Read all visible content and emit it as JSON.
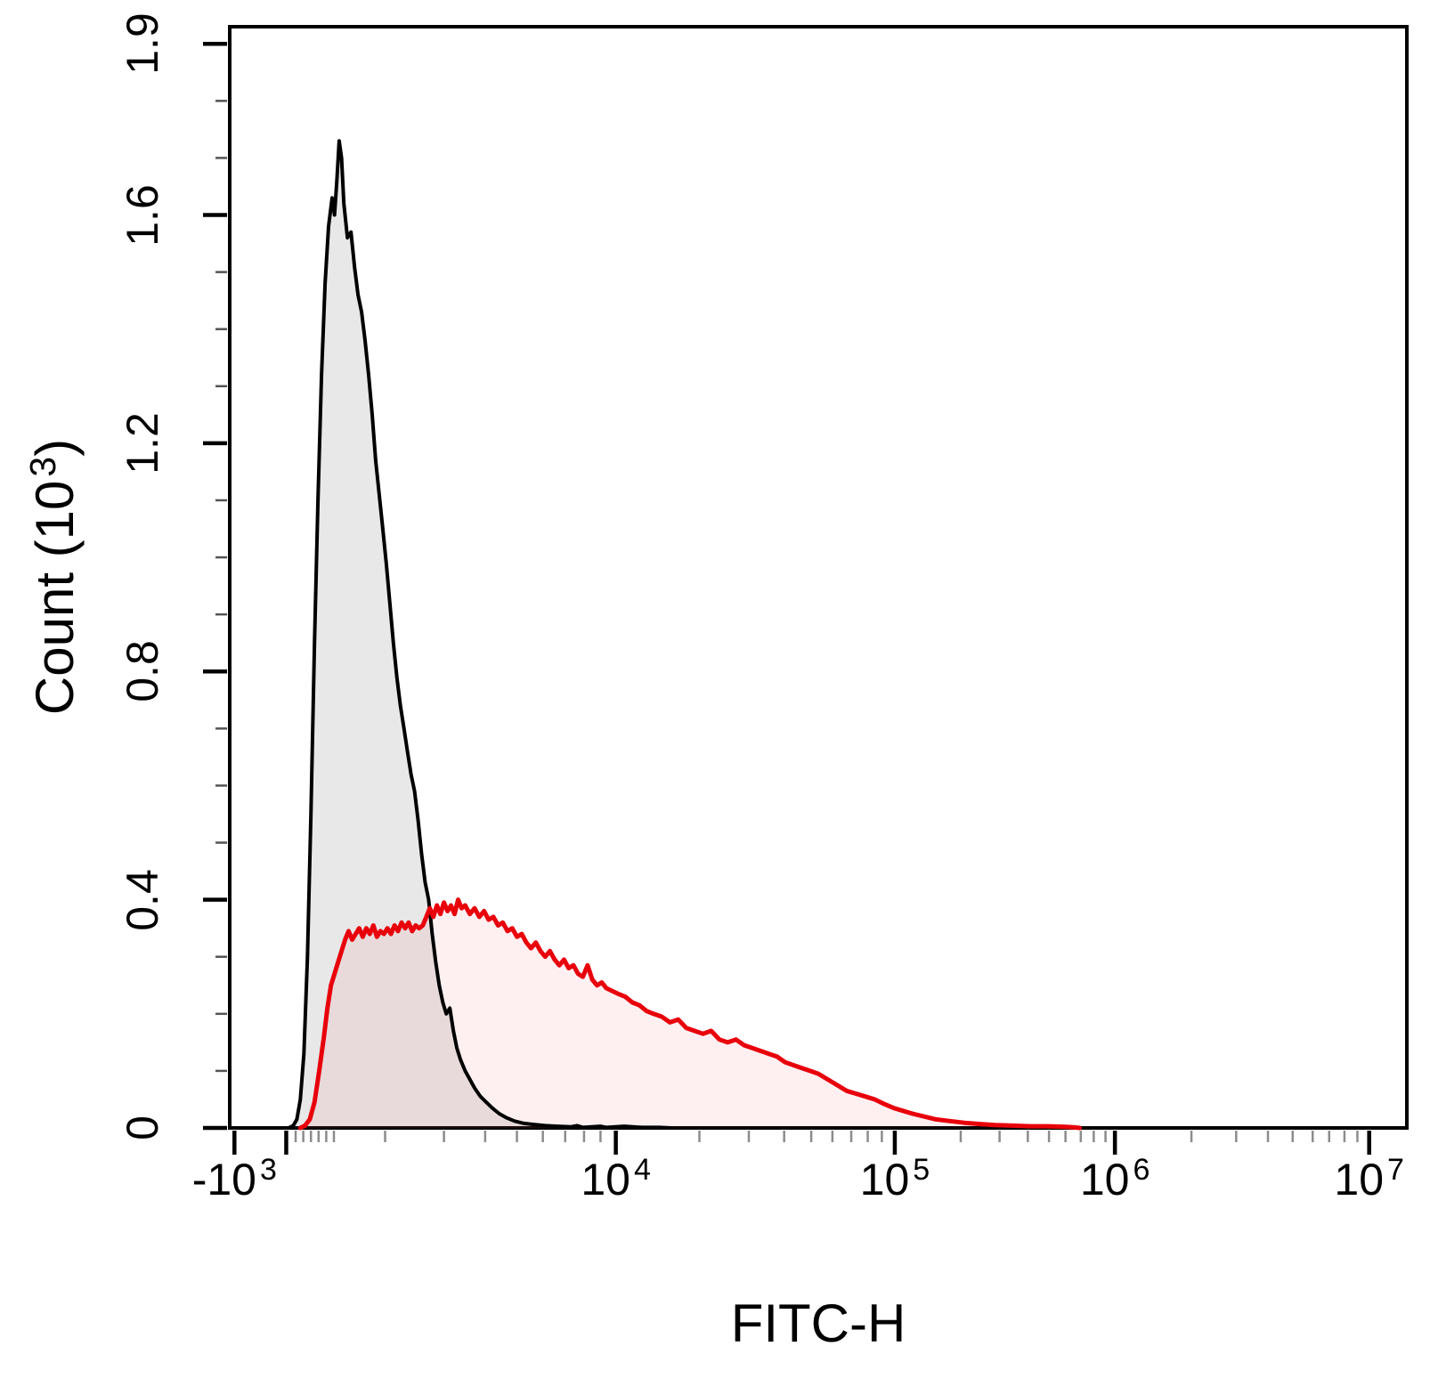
{
  "chart_data": {
    "type": "area",
    "subtype": "flow-cytometry-histogram-overlay",
    "title": "",
    "x_title": "FITC-H",
    "y_title": {
      "pre": "Count (10",
      "exp": "3",
      "post": ")"
    },
    "x_scale": "biexponential",
    "x_pos_unit": "fraction of plot width (biexponential axis from -10^3 to 10^7)",
    "y_unit": "10^3 counts",
    "y_range": [
      0,
      1.93
    ],
    "grid": false,
    "legend": false,
    "y_major_ticks": [
      {
        "label": "0",
        "value": 0
      },
      {
        "label": "0.4",
        "value": 0.4
      },
      {
        "label": "0.8",
        "value": 0.8
      },
      {
        "label": "1.2",
        "value": 1.2
      },
      {
        "label": "1.6",
        "value": 1.6
      },
      {
        "label": "1.9",
        "value": 1.9
      }
    ],
    "y_minor_tick_values": [
      0.1,
      0.2,
      0.3,
      0.5,
      0.6,
      0.7,
      0.9,
      1.0,
      1.1,
      1.3,
      1.4,
      1.5,
      1.7,
      1.8
    ],
    "x_major_ticks": [
      {
        "base": "-10",
        "exp": "3",
        "pos": 0.004
      },
      {
        "base": "",
        "exp": "",
        "pos": 0.048
      },
      {
        "base": "10",
        "exp": "4",
        "pos": 0.328
      },
      {
        "base": "10",
        "exp": "5",
        "pos": 0.565
      },
      {
        "base": "10",
        "exp": "6",
        "pos": 0.752
      },
      {
        "base": "10",
        "exp": "7",
        "pos": 0.968
      }
    ],
    "x_minor_tick_pos": [
      0.056,
      0.0625,
      0.069,
      0.0755,
      0.082,
      0.0885,
      0.132,
      0.182,
      0.217,
      0.244,
      0.266,
      0.285,
      0.301,
      0.315,
      0.399,
      0.441,
      0.471,
      0.494,
      0.512,
      0.528,
      0.542,
      0.554,
      0.621,
      0.654,
      0.678,
      0.696,
      0.71,
      0.723,
      0.734,
      0.744,
      0.817,
      0.855,
      0.882,
      0.903,
      0.92,
      0.934,
      0.947,
      0.958
    ],
    "series": [
      {
        "name": "histogram-black-filled-gray",
        "line_color": "#000000",
        "fill_color": "rgba(90,90,90,0.14)",
        "line_width": 4,
        "peak": {
          "pos": 0.093,
          "count": 1.73
        },
        "points": [
          [
            0.05,
            0
          ],
          [
            0.054,
            0.004
          ],
          [
            0.057,
            0.015
          ],
          [
            0.06,
            0.05
          ],
          [
            0.063,
            0.13
          ],
          [
            0.066,
            0.3
          ],
          [
            0.069,
            0.55
          ],
          [
            0.072,
            0.85
          ],
          [
            0.075,
            1.1
          ],
          [
            0.078,
            1.32
          ],
          [
            0.081,
            1.48
          ],
          [
            0.084,
            1.58
          ],
          [
            0.087,
            1.63
          ],
          [
            0.089,
            1.6
          ],
          [
            0.091,
            1.66
          ],
          [
            0.093,
            1.73
          ],
          [
            0.095,
            1.7
          ],
          [
            0.097,
            1.62
          ],
          [
            0.1,
            1.56
          ],
          [
            0.103,
            1.57
          ],
          [
            0.106,
            1.51
          ],
          [
            0.109,
            1.46
          ],
          [
            0.112,
            1.43
          ],
          [
            0.115,
            1.38
          ],
          [
            0.118,
            1.32
          ],
          [
            0.121,
            1.25
          ],
          [
            0.124,
            1.17
          ],
          [
            0.127,
            1.11
          ],
          [
            0.13,
            1.05
          ],
          [
            0.133,
            0.99
          ],
          [
            0.136,
            0.92
          ],
          [
            0.139,
            0.85
          ],
          [
            0.142,
            0.79
          ],
          [
            0.145,
            0.74
          ],
          [
            0.148,
            0.7
          ],
          [
            0.151,
            0.66
          ],
          [
            0.154,
            0.62
          ],
          [
            0.157,
            0.59
          ],
          [
            0.16,
            0.54
          ],
          [
            0.163,
            0.48
          ],
          [
            0.166,
            0.43
          ],
          [
            0.169,
            0.4
          ],
          [
            0.172,
            0.34
          ],
          [
            0.175,
            0.29
          ],
          [
            0.178,
            0.25
          ],
          [
            0.181,
            0.22
          ],
          [
            0.184,
            0.2
          ],
          [
            0.187,
            0.21
          ],
          [
            0.19,
            0.17
          ],
          [
            0.193,
            0.14
          ],
          [
            0.196,
            0.12
          ],
          [
            0.2,
            0.1
          ],
          [
            0.204,
            0.085
          ],
          [
            0.208,
            0.07
          ],
          [
            0.213,
            0.055
          ],
          [
            0.218,
            0.045
          ],
          [
            0.223,
            0.035
          ],
          [
            0.229,
            0.025
          ],
          [
            0.235,
            0.018
          ],
          [
            0.242,
            0.012
          ],
          [
            0.25,
            0.008
          ],
          [
            0.259,
            0.006
          ],
          [
            0.268,
            0.004
          ],
          [
            0.278,
            0.003
          ],
          [
            0.29,
            0.002
          ],
          [
            0.295,
            0.004
          ],
          [
            0.3,
            0.001
          ],
          [
            0.315,
            0.003
          ],
          [
            0.32,
            0.001
          ],
          [
            0.335,
            0.003
          ],
          [
            0.35,
            0.001
          ],
          [
            0.365,
            0.001
          ],
          [
            0.375,
            0
          ]
        ]
      },
      {
        "name": "histogram-red",
        "line_color": "#e8000b",
        "fill_color": "rgba(232,0,11,0.06)",
        "line_width": 5,
        "peak": {
          "pos": 0.194,
          "count": 0.4
        },
        "points": [
          [
            0.06,
            0
          ],
          [
            0.064,
            0.004
          ],
          [
            0.068,
            0.015
          ],
          [
            0.072,
            0.045
          ],
          [
            0.076,
            0.1
          ],
          [
            0.08,
            0.16
          ],
          [
            0.083,
            0.21
          ],
          [
            0.086,
            0.25
          ],
          [
            0.089,
            0.27
          ],
          [
            0.092,
            0.29
          ],
          [
            0.095,
            0.31
          ],
          [
            0.098,
            0.33
          ],
          [
            0.101,
            0.345
          ],
          [
            0.104,
            0.33
          ],
          [
            0.107,
            0.34
          ],
          [
            0.11,
            0.35
          ],
          [
            0.113,
            0.335
          ],
          [
            0.116,
            0.35
          ],
          [
            0.119,
            0.34
          ],
          [
            0.122,
            0.355
          ],
          [
            0.125,
            0.335
          ],
          [
            0.128,
            0.345
          ],
          [
            0.131,
            0.34
          ],
          [
            0.134,
            0.35
          ],
          [
            0.137,
            0.34
          ],
          [
            0.14,
            0.355
          ],
          [
            0.143,
            0.345
          ],
          [
            0.146,
            0.36
          ],
          [
            0.149,
            0.35
          ],
          [
            0.152,
            0.36
          ],
          [
            0.155,
            0.345
          ],
          [
            0.158,
            0.355
          ],
          [
            0.161,
            0.35
          ],
          [
            0.164,
            0.355
          ],
          [
            0.167,
            0.37
          ],
          [
            0.17,
            0.385
          ],
          [
            0.173,
            0.37
          ],
          [
            0.176,
            0.39
          ],
          [
            0.179,
            0.375
          ],
          [
            0.182,
            0.395
          ],
          [
            0.185,
            0.38
          ],
          [
            0.188,
            0.39
          ],
          [
            0.191,
            0.375
          ],
          [
            0.194,
            0.4
          ],
          [
            0.197,
            0.385
          ],
          [
            0.2,
            0.39
          ],
          [
            0.204,
            0.375
          ],
          [
            0.208,
            0.385
          ],
          [
            0.212,
            0.37
          ],
          [
            0.216,
            0.38
          ],
          [
            0.22,
            0.365
          ],
          [
            0.224,
            0.37
          ],
          [
            0.228,
            0.355
          ],
          [
            0.232,
            0.36
          ],
          [
            0.236,
            0.345
          ],
          [
            0.24,
            0.35
          ],
          [
            0.244,
            0.335
          ],
          [
            0.248,
            0.34
          ],
          [
            0.252,
            0.325
          ],
          [
            0.256,
            0.315
          ],
          [
            0.26,
            0.325
          ],
          [
            0.264,
            0.31
          ],
          [
            0.268,
            0.3
          ],
          [
            0.272,
            0.31
          ],
          [
            0.276,
            0.295
          ],
          [
            0.28,
            0.285
          ],
          [
            0.284,
            0.295
          ],
          [
            0.288,
            0.28
          ],
          [
            0.292,
            0.285
          ],
          [
            0.296,
            0.27
          ],
          [
            0.3,
            0.265
          ],
          [
            0.304,
            0.285
          ],
          [
            0.308,
            0.26
          ],
          [
            0.312,
            0.25
          ],
          [
            0.316,
            0.255
          ],
          [
            0.32,
            0.245
          ],
          [
            0.325,
            0.24
          ],
          [
            0.33,
            0.235
          ],
          [
            0.336,
            0.23
          ],
          [
            0.342,
            0.22
          ],
          [
            0.348,
            0.215
          ],
          [
            0.354,
            0.205
          ],
          [
            0.36,
            0.2
          ],
          [
            0.367,
            0.195
          ],
          [
            0.374,
            0.185
          ],
          [
            0.381,
            0.19
          ],
          [
            0.388,
            0.175
          ],
          [
            0.395,
            0.17
          ],
          [
            0.402,
            0.165
          ],
          [
            0.409,
            0.17
          ],
          [
            0.416,
            0.155
          ],
          [
            0.423,
            0.15
          ],
          [
            0.43,
            0.155
          ],
          [
            0.437,
            0.145
          ],
          [
            0.444,
            0.14
          ],
          [
            0.451,
            0.135
          ],
          [
            0.458,
            0.13
          ],
          [
            0.465,
            0.125
          ],
          [
            0.472,
            0.115
          ],
          [
            0.479,
            0.11
          ],
          [
            0.486,
            0.105
          ],
          [
            0.493,
            0.1
          ],
          [
            0.5,
            0.095
          ],
          [
            0.508,
            0.085
          ],
          [
            0.516,
            0.075
          ],
          [
            0.524,
            0.065
          ],
          [
            0.532,
            0.06
          ],
          [
            0.54,
            0.055
          ],
          [
            0.548,
            0.05
          ],
          [
            0.556,
            0.042
          ],
          [
            0.564,
            0.035
          ],
          [
            0.572,
            0.03
          ],
          [
            0.58,
            0.025
          ],
          [
            0.59,
            0.02
          ],
          [
            0.6,
            0.015
          ],
          [
            0.612,
            0.012
          ],
          [
            0.624,
            0.009
          ],
          [
            0.636,
            0.007
          ],
          [
            0.65,
            0.005
          ],
          [
            0.665,
            0.004
          ],
          [
            0.68,
            0.003
          ],
          [
            0.695,
            0.003
          ],
          [
            0.71,
            0.002
          ],
          [
            0.718,
            0.001
          ],
          [
            0.722,
            0
          ]
        ]
      }
    ]
  }
}
